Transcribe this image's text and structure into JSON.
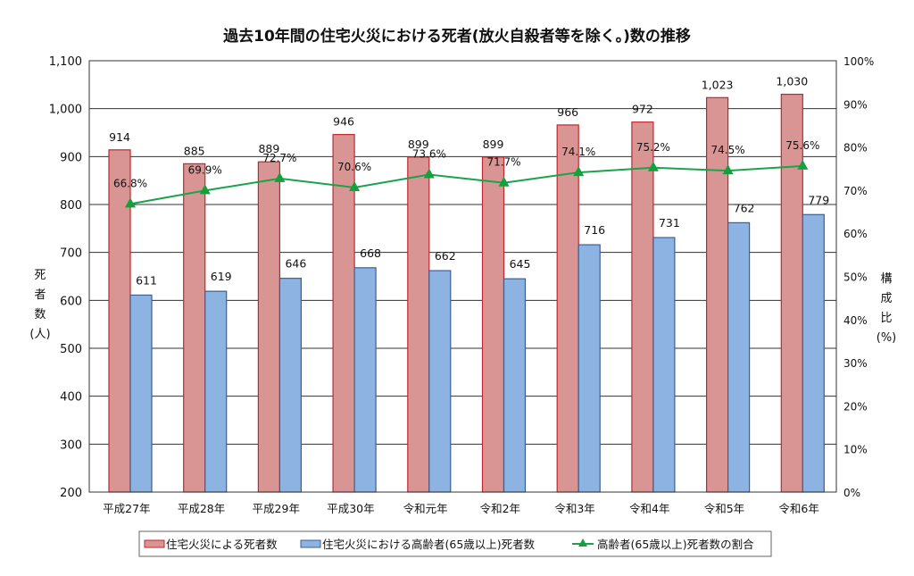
{
  "chart_data": {
    "type": "bar",
    "title": "過去10年間の住宅火災における死者(放火自殺者等を除く。)数の推移",
    "categories": [
      "平成27年",
      "平成28年",
      "平成29年",
      "平成30年",
      "令和元年",
      "令和2年",
      "令和3年",
      "令和4年",
      "令和5年",
      "令和6年"
    ],
    "series": [
      {
        "name": "住宅火災による死者数",
        "kind": "bar",
        "axis": "left",
        "color": "#d99594",
        "edge": "#c0272d",
        "values": [
          914,
          885,
          889,
          946,
          899,
          899,
          966,
          972,
          1023,
          1030
        ],
        "labels": [
          "914",
          "885",
          "889",
          "946",
          "899",
          "899",
          "966",
          "972",
          "1,023",
          "1,030"
        ]
      },
      {
        "name": "住宅火災における高齢者(65歳以上)死者数",
        "kind": "bar",
        "axis": "left",
        "color": "#8db3e2",
        "edge": "#3c5f8f",
        "values": [
          611,
          619,
          646,
          668,
          662,
          645,
          716,
          731,
          762,
          779
        ],
        "labels": [
          "611",
          "619",
          "646",
          "668",
          "662",
          "645",
          "716",
          "731",
          "762",
          "779"
        ]
      },
      {
        "name": "高齢者(65歳以上)死者数の割合",
        "kind": "line",
        "axis": "right",
        "color": "#1aa34a",
        "values": [
          66.8,
          69.9,
          72.7,
          70.6,
          73.6,
          71.7,
          74.1,
          75.2,
          74.5,
          75.6
        ],
        "labels": [
          "66.8%",
          "69.9%",
          "72.7%",
          "70.6%",
          "73.6%",
          "71.7%",
          "74.1%",
          "75.2%",
          "74.5%",
          "75.6%"
        ]
      }
    ],
    "ylim": [
      200,
      1100
    ],
    "yticks": [
      "200",
      "300",
      "400",
      "500",
      "600",
      "700",
      "800",
      "900",
      "1,000",
      "1,100"
    ],
    "ylabel": [
      "死",
      "者",
      "数",
      "(人)"
    ],
    "y2lim": [
      0,
      100
    ],
    "y2ticks": [
      "0%",
      "10%",
      "20%",
      "30%",
      "40%",
      "50%",
      "60%",
      "70%",
      "80%",
      "90%",
      "100%"
    ],
    "y2label": [
      "構",
      "成",
      "比",
      "(%)"
    ],
    "grid": true,
    "legend": "bottom"
  }
}
